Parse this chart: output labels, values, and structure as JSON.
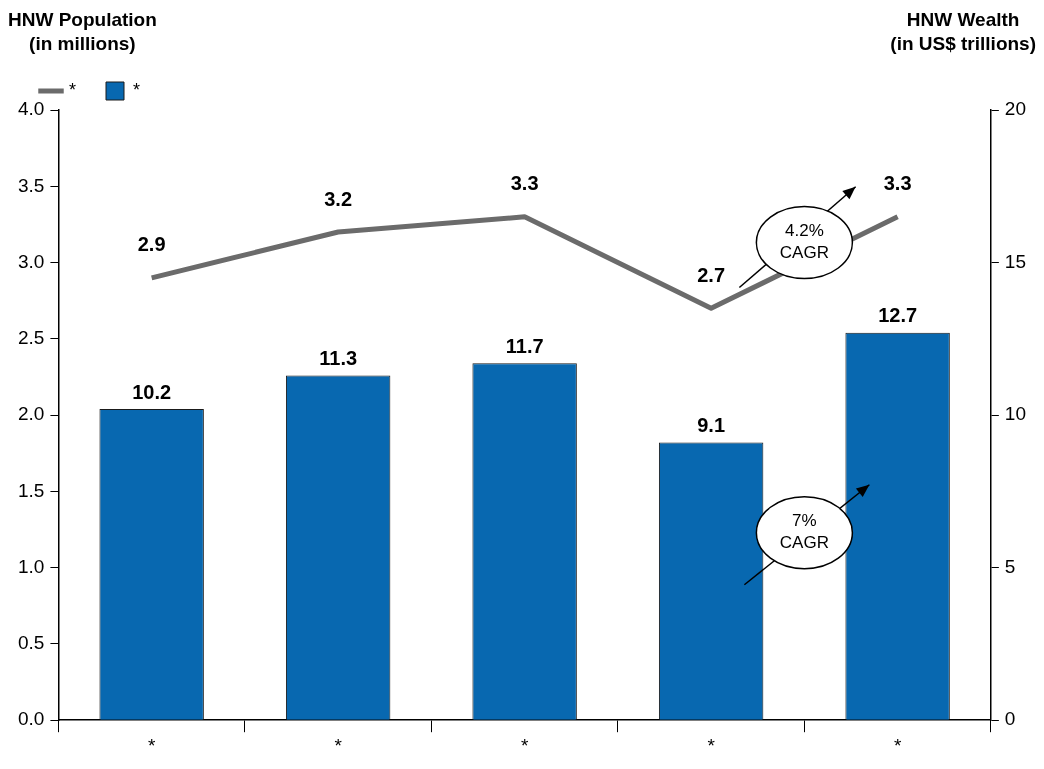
{
  "chart_data": {
    "type": "bar",
    "ylabel": "HNW Population\n(in millions)",
    "y2label": "HNW Wealth\n(in US$ trillions)",
    "categories": [
      "*",
      "*",
      "*",
      "*",
      "*"
    ],
    "series": [
      {
        "name": "*",
        "type": "line",
        "color": "#6b6b6b",
        "axis": "y",
        "values": [
          2.9,
          3.2,
          3.3,
          2.7,
          3.3
        ]
      },
      {
        "name": "*",
        "color": "#0868b0",
        "axis": "y2",
        "values": [
          10.2,
          11.3,
          11.7,
          9.1,
          12.7
        ]
      }
    ],
    "ylim": [
      0,
      4
    ],
    "yticks": [
      {
        "value": 0,
        "label": "0.0"
      },
      0.5,
      {
        "value": 1,
        "label": "1.0"
      },
      1.5,
      {
        "value": 2,
        "label": "2.0"
      },
      2.5,
      {
        "value": 3,
        "label": "3.0"
      },
      3.5,
      {
        "value": 4,
        "label": "4.0"
      }
    ],
    "y2lim": [
      0,
      20
    ],
    "y2ticks": [
      0,
      5,
      10,
      15,
      20
    ],
    "annotations": [
      "4.2%\nCAGR",
      "7%\nCAGR"
    ],
    "data_labels": true,
    "legend": "top left",
    "grid": false,
    "marker": "none"
  }
}
